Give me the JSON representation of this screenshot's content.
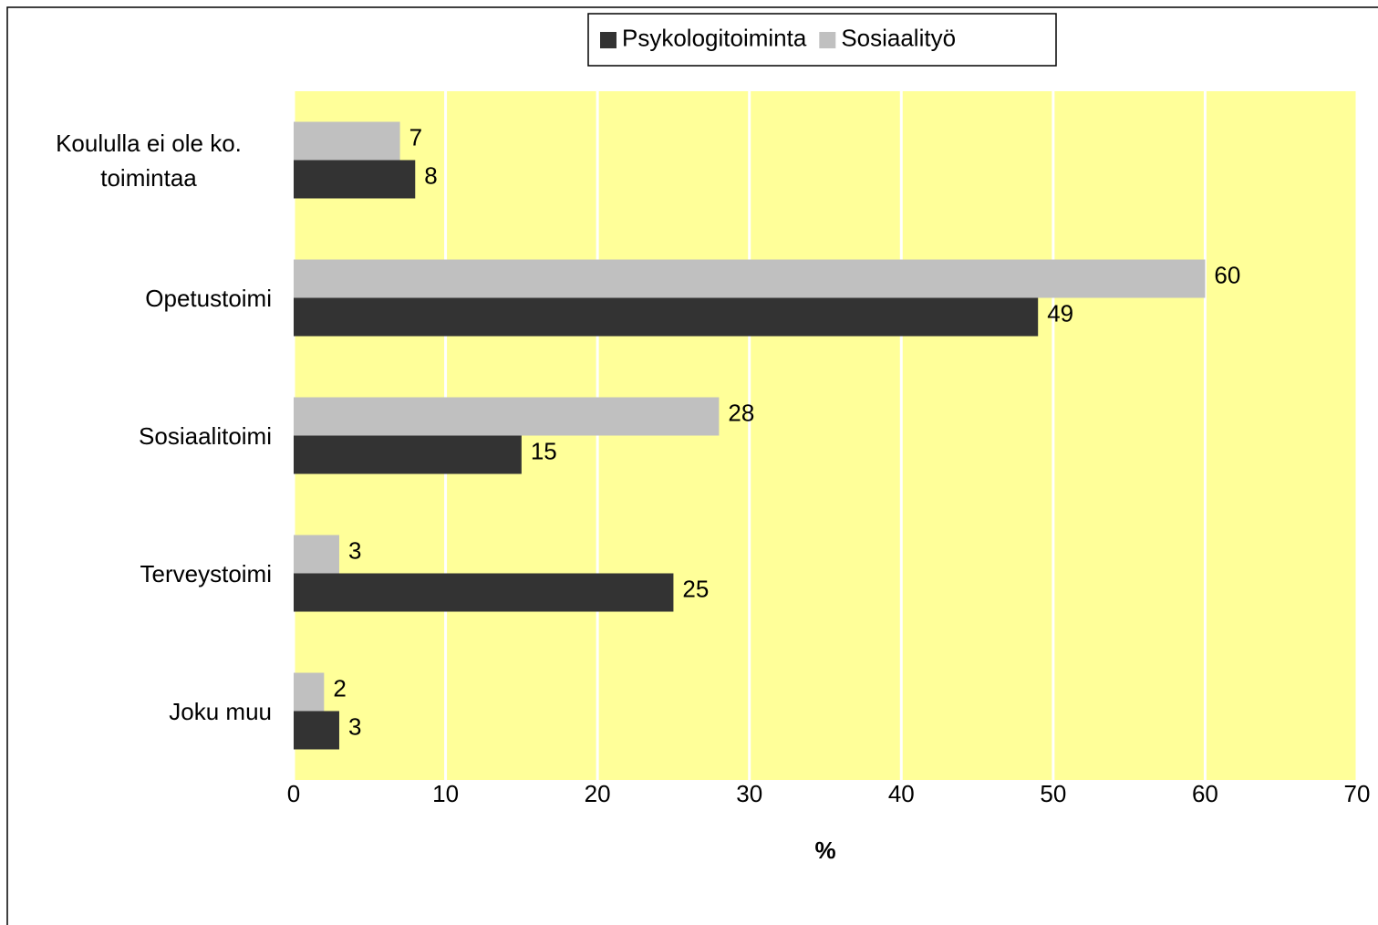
{
  "chart_data": {
    "type": "bar",
    "orientation": "horizontal",
    "categories": [
      "Koululla ei ole ko. toimintaa",
      "Opetustoimi",
      "Sosiaalitoimi",
      "Terveystoimi",
      "Joku muu"
    ],
    "series": [
      {
        "name": "Psykologitoiminta",
        "color": "#333333",
        "values": [
          8,
          49,
          15,
          25,
          3
        ]
      },
      {
        "name": "Sosiaalityö",
        "color": "#c0c0c0",
        "values": [
          7,
          60,
          28,
          3,
          2
        ]
      }
    ],
    "xlabel": "%",
    "xlim": [
      0,
      70
    ],
    "xticks": [
      0,
      10,
      20,
      30,
      40,
      50,
      60,
      70
    ],
    "grid": true,
    "plot_background": "#ffff99",
    "legend": "top"
  }
}
